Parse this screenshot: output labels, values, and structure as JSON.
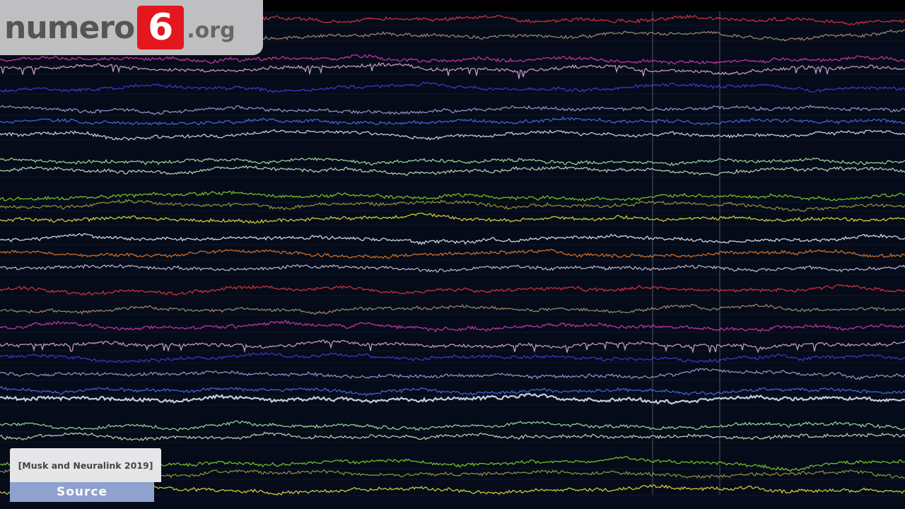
{
  "logo": {
    "brand_text": "numero",
    "brand_number": "6",
    "brand_tld": ".org",
    "accent_color": "#e4171f"
  },
  "source": {
    "citation": "[Musk and Neuralink 2019]",
    "label": "Source"
  },
  "traces": {
    "background_color": "#050b18",
    "colors": [
      "#e0343f",
      "#a58f78",
      "#d23aa8",
      "#d8a7d8",
      "#4a36d8",
      "#a79ad0",
      "#4a6ae8",
      "#d5e2f2",
      "#a8e0a4",
      "#c6dfc0",
      "#7fd028",
      "#9a9a40",
      "#e0e040",
      "#e6ecf2",
      "#e0782c",
      "#c7c0e0",
      "#e0343f",
      "#a58f78",
      "#d23aa8",
      "#d8a7d8",
      "#4a36d8",
      "#a79ad0",
      "#4a6ae8",
      "#d5e2f2",
      "#a8e0a4",
      "#c6dfc0",
      "#7fd028",
      "#9a9a40",
      "#e0e040"
    ]
  }
}
